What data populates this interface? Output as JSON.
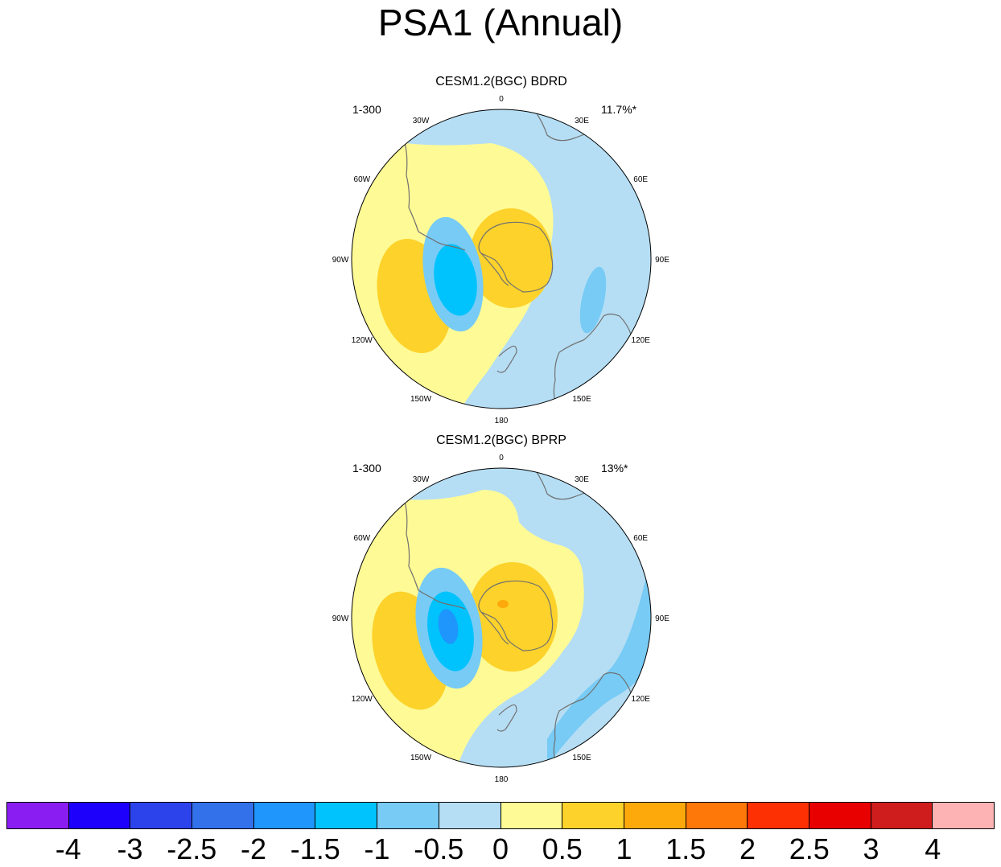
{
  "title": "PSA1 (Annual)",
  "panels": [
    {
      "title": "CESM1.2(BGC) BDRD",
      "years": "1-300",
      "variance": "11.7%*",
      "variant": "bdrd"
    },
    {
      "title": "CESM1.2(BGC) BPRP",
      "years": "1-300",
      "variance": "13%*",
      "variant": "bprp"
    }
  ],
  "lon_labels": [
    "0",
    "30E",
    "60E",
    "90E",
    "120E",
    "150E",
    "180",
    "150W",
    "120W",
    "90W",
    "60W",
    "30W"
  ],
  "colorbar": {
    "colors": [
      "#8a1ef2",
      "#1c00fb",
      "#2c42ea",
      "#3371ea",
      "#1e96fc",
      "#00c3fd",
      "#77cbf5",
      "#b5def5",
      "#fefa95",
      "#fdd22a",
      "#fda90b",
      "#fd7709",
      "#fd3003",
      "#e80000",
      "#cf1c1c",
      "#fdb3b3"
    ],
    "labels": [
      "-4",
      "-3",
      "-2.5",
      "-2",
      "-1.5",
      "-1",
      "-0.5",
      "0",
      "0.5",
      "1",
      "1.5",
      "2",
      "2.5",
      "3",
      "4"
    ]
  },
  "map_colors": {
    "ocean_neg_05": "#b5def5",
    "pos_05": "#fefa95",
    "pos_1": "#fdd22a",
    "pos_15": "#fda90b",
    "neg_1": "#77cbf5",
    "neg_15": "#00c3fd",
    "neg_2": "#1e96fc",
    "coast": "#707070"
  }
}
